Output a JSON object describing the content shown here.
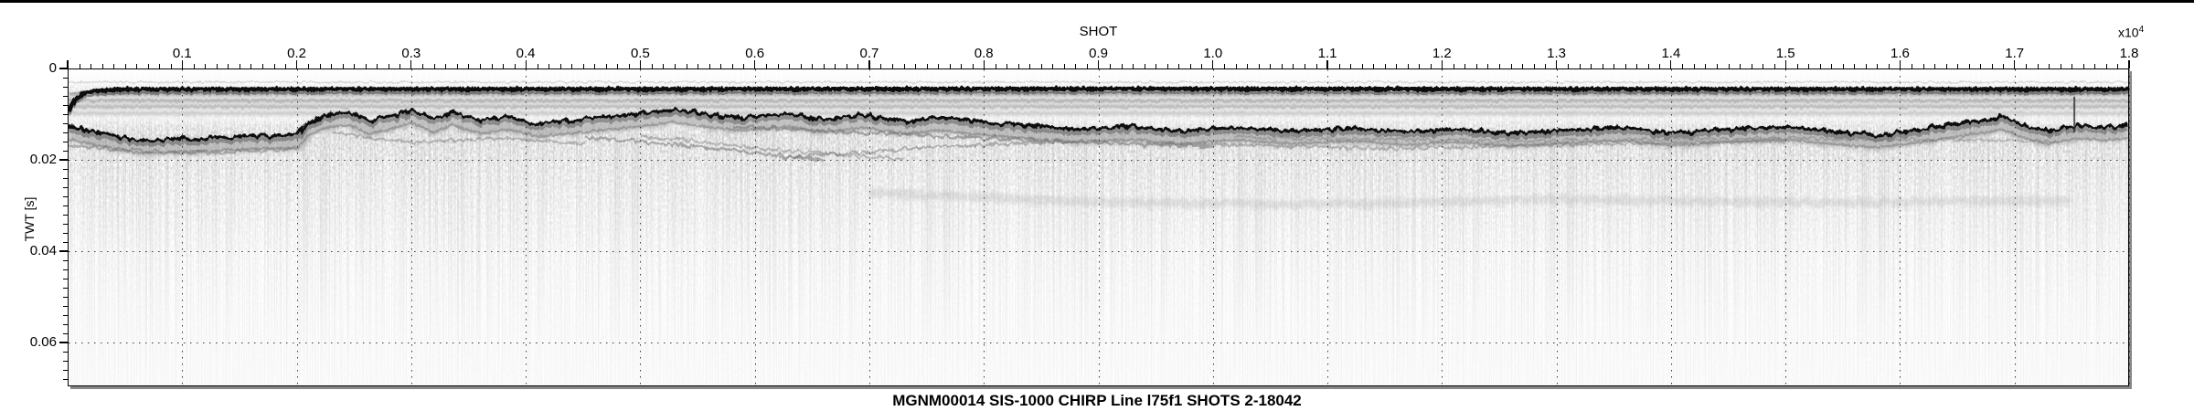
{
  "figure": {
    "caption": "MGNM00014 SIS-1000 CHIRP Line l75f1 SHOTS 2-18042"
  },
  "colors": {
    "background": "#ffffff",
    "frame": "#000000",
    "frame_shadow": "#888888",
    "grid_dots": "#191919",
    "direct_arrival": "#0b0b0b",
    "seafloor_line": "#101010",
    "band_gray": "#9a9a9a",
    "texture_gray": "#6f6f6f"
  },
  "chart_data": {
    "type": "heatmap",
    "description": "Grayscale CHIRP sub-bottom seismic reflection profile; dark horizontal direct-arrival band near top and an undulating seafloor reflector with faint sub-bottom reflectors fading with depth",
    "title": "MGNM00014 SIS-1000 CHIRP Line l75f1 SHOTS 2-18042",
    "xlabel": "SHOT",
    "x_scale_note": {
      "prefix": "x10",
      "exponent": "4"
    },
    "ylabel": "TWT [s]",
    "xlim": [
      0,
      1.8
    ],
    "ylim": [
      0,
      0.0696
    ],
    "y_axis_reversed_downward": true,
    "grid": "dotted",
    "legend": "none",
    "x_axis": {
      "major_tick_values": [
        0,
        0.1,
        0.2,
        0.3,
        0.4,
        0.5,
        0.6,
        0.7,
        0.8,
        0.9,
        1.0,
        1.1,
        1.2,
        1.3,
        1.4,
        1.5,
        1.6,
        1.7,
        1.8
      ],
      "major_tick_labels": [
        "",
        "0.1",
        "0.2",
        "0.3",
        "0.4",
        "0.5",
        "0.6",
        "0.7",
        "0.8",
        "0.9",
        "1.0",
        "1.1",
        "1.2",
        "1.3",
        "1.4",
        "1.5",
        "1.6",
        "1.7",
        "1.8"
      ],
      "minor_step": 0.01
    },
    "y_axis": {
      "major_tick_values": [
        0,
        0.02,
        0.04,
        0.06
      ],
      "major_tick_labels": [
        "0",
        "0.02",
        "0.04",
        "0.06"
      ],
      "minor_step": 0.002
    },
    "ghost_arrival_twt": 0.0028,
    "direct_arrival": {
      "points": [
        [
          0,
          0.009
        ],
        [
          0.006,
          0.0066
        ],
        [
          0.015,
          0.005
        ],
        [
          0.04,
          0.0044
        ],
        [
          0.9,
          0.0043
        ],
        [
          1.8,
          0.0044
        ]
      ],
      "band_top_twt": 0.005,
      "band_bottom_twt": 0.0106
    },
    "series": [
      {
        "name": "seafloor-reflector",
        "points": [
          [
            0.0,
            0.0126
          ],
          [
            0.06,
            0.0156
          ],
          [
            0.12,
            0.0152
          ],
          [
            0.17,
            0.0146
          ],
          [
            0.2,
            0.0144
          ],
          [
            0.21,
            0.0116
          ],
          [
            0.225,
            0.01
          ],
          [
            0.245,
            0.0094
          ],
          [
            0.263,
            0.0114
          ],
          [
            0.28,
            0.0104
          ],
          [
            0.3,
            0.009
          ],
          [
            0.32,
            0.011
          ],
          [
            0.335,
            0.0094
          ],
          [
            0.36,
            0.0114
          ],
          [
            0.385,
            0.0104
          ],
          [
            0.41,
            0.012
          ],
          [
            0.45,
            0.011
          ],
          [
            0.49,
            0.01
          ],
          [
            0.53,
            0.0088
          ],
          [
            0.56,
            0.01
          ],
          [
            0.59,
            0.0106
          ],
          [
            0.63,
            0.0098
          ],
          [
            0.66,
            0.011
          ],
          [
            0.695,
            0.01
          ],
          [
            0.73,
            0.0114
          ],
          [
            0.76,
            0.0106
          ],
          [
            0.8,
            0.0116
          ],
          [
            0.84,
            0.0124
          ],
          [
            0.88,
            0.0132
          ],
          [
            0.93,
            0.0126
          ],
          [
            0.97,
            0.0136
          ],
          [
            1.02,
            0.0128
          ],
          [
            1.07,
            0.0136
          ],
          [
            1.12,
            0.013
          ],
          [
            1.17,
            0.0138
          ],
          [
            1.21,
            0.0132
          ],
          [
            1.26,
            0.014
          ],
          [
            1.31,
            0.0134
          ],
          [
            1.36,
            0.0128
          ],
          [
            1.4,
            0.014
          ],
          [
            1.45,
            0.0132
          ],
          [
            1.5,
            0.0126
          ],
          [
            1.54,
            0.0136
          ],
          [
            1.58,
            0.0144
          ],
          [
            1.62,
            0.0132
          ],
          [
            1.66,
            0.0116
          ],
          [
            1.69,
            0.0104
          ],
          [
            1.71,
            0.0124
          ],
          [
            1.73,
            0.0136
          ],
          [
            1.755,
            0.0124
          ],
          [
            1.78,
            0.0128
          ],
          [
            1.8,
            0.0124
          ]
        ]
      }
    ],
    "sub_reflectors": [
      {
        "points": [
          [
            0.0,
            0.0168
          ],
          [
            0.1,
            0.0186
          ],
          [
            0.2,
            0.0176
          ]
        ],
        "opacity": 0.45,
        "width": 2.6
      },
      {
        "points": [
          [
            0.23,
            0.014
          ],
          [
            0.3,
            0.016
          ],
          [
            0.38,
            0.0152
          ],
          [
            0.45,
            0.0164
          ]
        ],
        "opacity": 0.4,
        "width": 2.6
      },
      {
        "points": [
          [
            0.45,
            0.0148
          ],
          [
            0.55,
            0.017
          ],
          [
            0.66,
            0.02
          ]
        ],
        "opacity": 0.5,
        "width": 2.8
      },
      {
        "points": [
          [
            0.5,
            0.0146
          ],
          [
            0.62,
            0.0178
          ],
          [
            0.73,
            0.0198
          ]
        ],
        "opacity": 0.4,
        "width": 2.4
      },
      {
        "points": [
          [
            0.62,
            0.0196
          ],
          [
            0.75,
            0.0172
          ],
          [
            0.88,
            0.0158
          ]
        ],
        "opacity": 0.45,
        "width": 2.6
      },
      {
        "points": [
          [
            0.58,
            0.0126
          ],
          [
            0.8,
            0.0152
          ],
          [
            1.0,
            0.017
          ]
        ],
        "opacity": 0.5,
        "width": 2.8
      },
      {
        "points": [
          [
            0.95,
            0.0162
          ],
          [
            1.15,
            0.0174
          ],
          [
            1.35,
            0.0164
          ],
          [
            1.5,
            0.0158
          ]
        ],
        "opacity": 0.4,
        "width": 2.4
      },
      {
        "points": [
          [
            1.02,
            0.015
          ],
          [
            1.25,
            0.0158
          ],
          [
            1.5,
            0.0152
          ],
          [
            1.74,
            0.0158
          ]
        ],
        "opacity": 0.35,
        "width": 2.2
      }
    ],
    "deep_band": {
      "points": [
        [
          0.7,
          0.0272
        ],
        [
          0.9,
          0.0292
        ],
        [
          1.1,
          0.0298
        ],
        [
          1.3,
          0.0286
        ],
        [
          1.55,
          0.0294
        ],
        [
          1.75,
          0.0288
        ]
      ],
      "opacity": 0.22,
      "width": 9
    },
    "noise_spike": {
      "x": 1.753,
      "twt_from": 0.006,
      "twt_to": 0.0138
    }
  }
}
